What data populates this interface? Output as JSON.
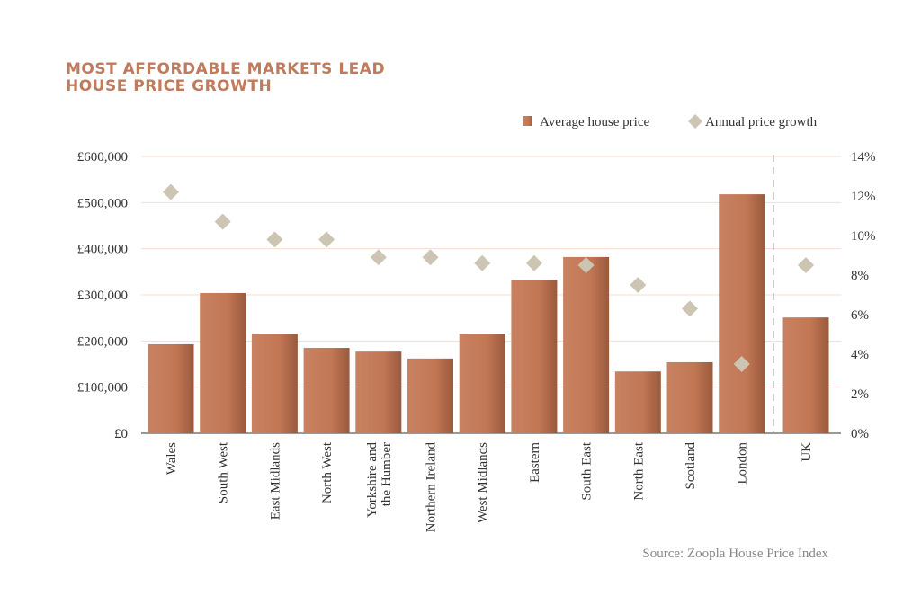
{
  "chart_data": {
    "type": "bar",
    "title": [
      "MOST AFFORDABLE MARKETS LEAD",
      "HOUSE PRICE GROWTH"
    ],
    "categories": [
      "Wales",
      "South West",
      "East Midlands",
      "North West",
      "Yorkshire and|the  Humber",
      "Northern Ireland",
      "West Midlands",
      "Eastern",
      "South East",
      "North East",
      "Scotland",
      "London",
      "UK"
    ],
    "series": [
      {
        "name": "Average house price",
        "type": "bar",
        "axis": "left",
        "color": "#c47a58",
        "values": [
          193000,
          304000,
          216000,
          185000,
          177000,
          162000,
          216000,
          333000,
          382000,
          134000,
          154000,
          518000,
          251000
        ]
      },
      {
        "name": "Annual price growth",
        "type": "scatter",
        "marker": "diamond",
        "axis": "right",
        "color": "#cdc5b3",
        "values": [
          12.2,
          10.7,
          9.8,
          9.8,
          8.9,
          8.9,
          8.6,
          8.6,
          8.5,
          7.5,
          6.3,
          3.5,
          8.5
        ]
      }
    ],
    "left_axis": {
      "ylim": [
        0,
        600000
      ],
      "ticks": [
        "£0",
        "£100,000",
        "£200,000",
        "£300,000",
        "£400,000",
        "£500,000",
        "£600,000"
      ]
    },
    "right_axis": {
      "ylim": [
        0,
        14
      ],
      "ticks": [
        "0%",
        "2%",
        "4%",
        "6%",
        "8%",
        "10%",
        "12%",
        "14%"
      ]
    },
    "legend_position": "top-right",
    "grid": true,
    "source": "Source: Zoopla House Price Index"
  }
}
